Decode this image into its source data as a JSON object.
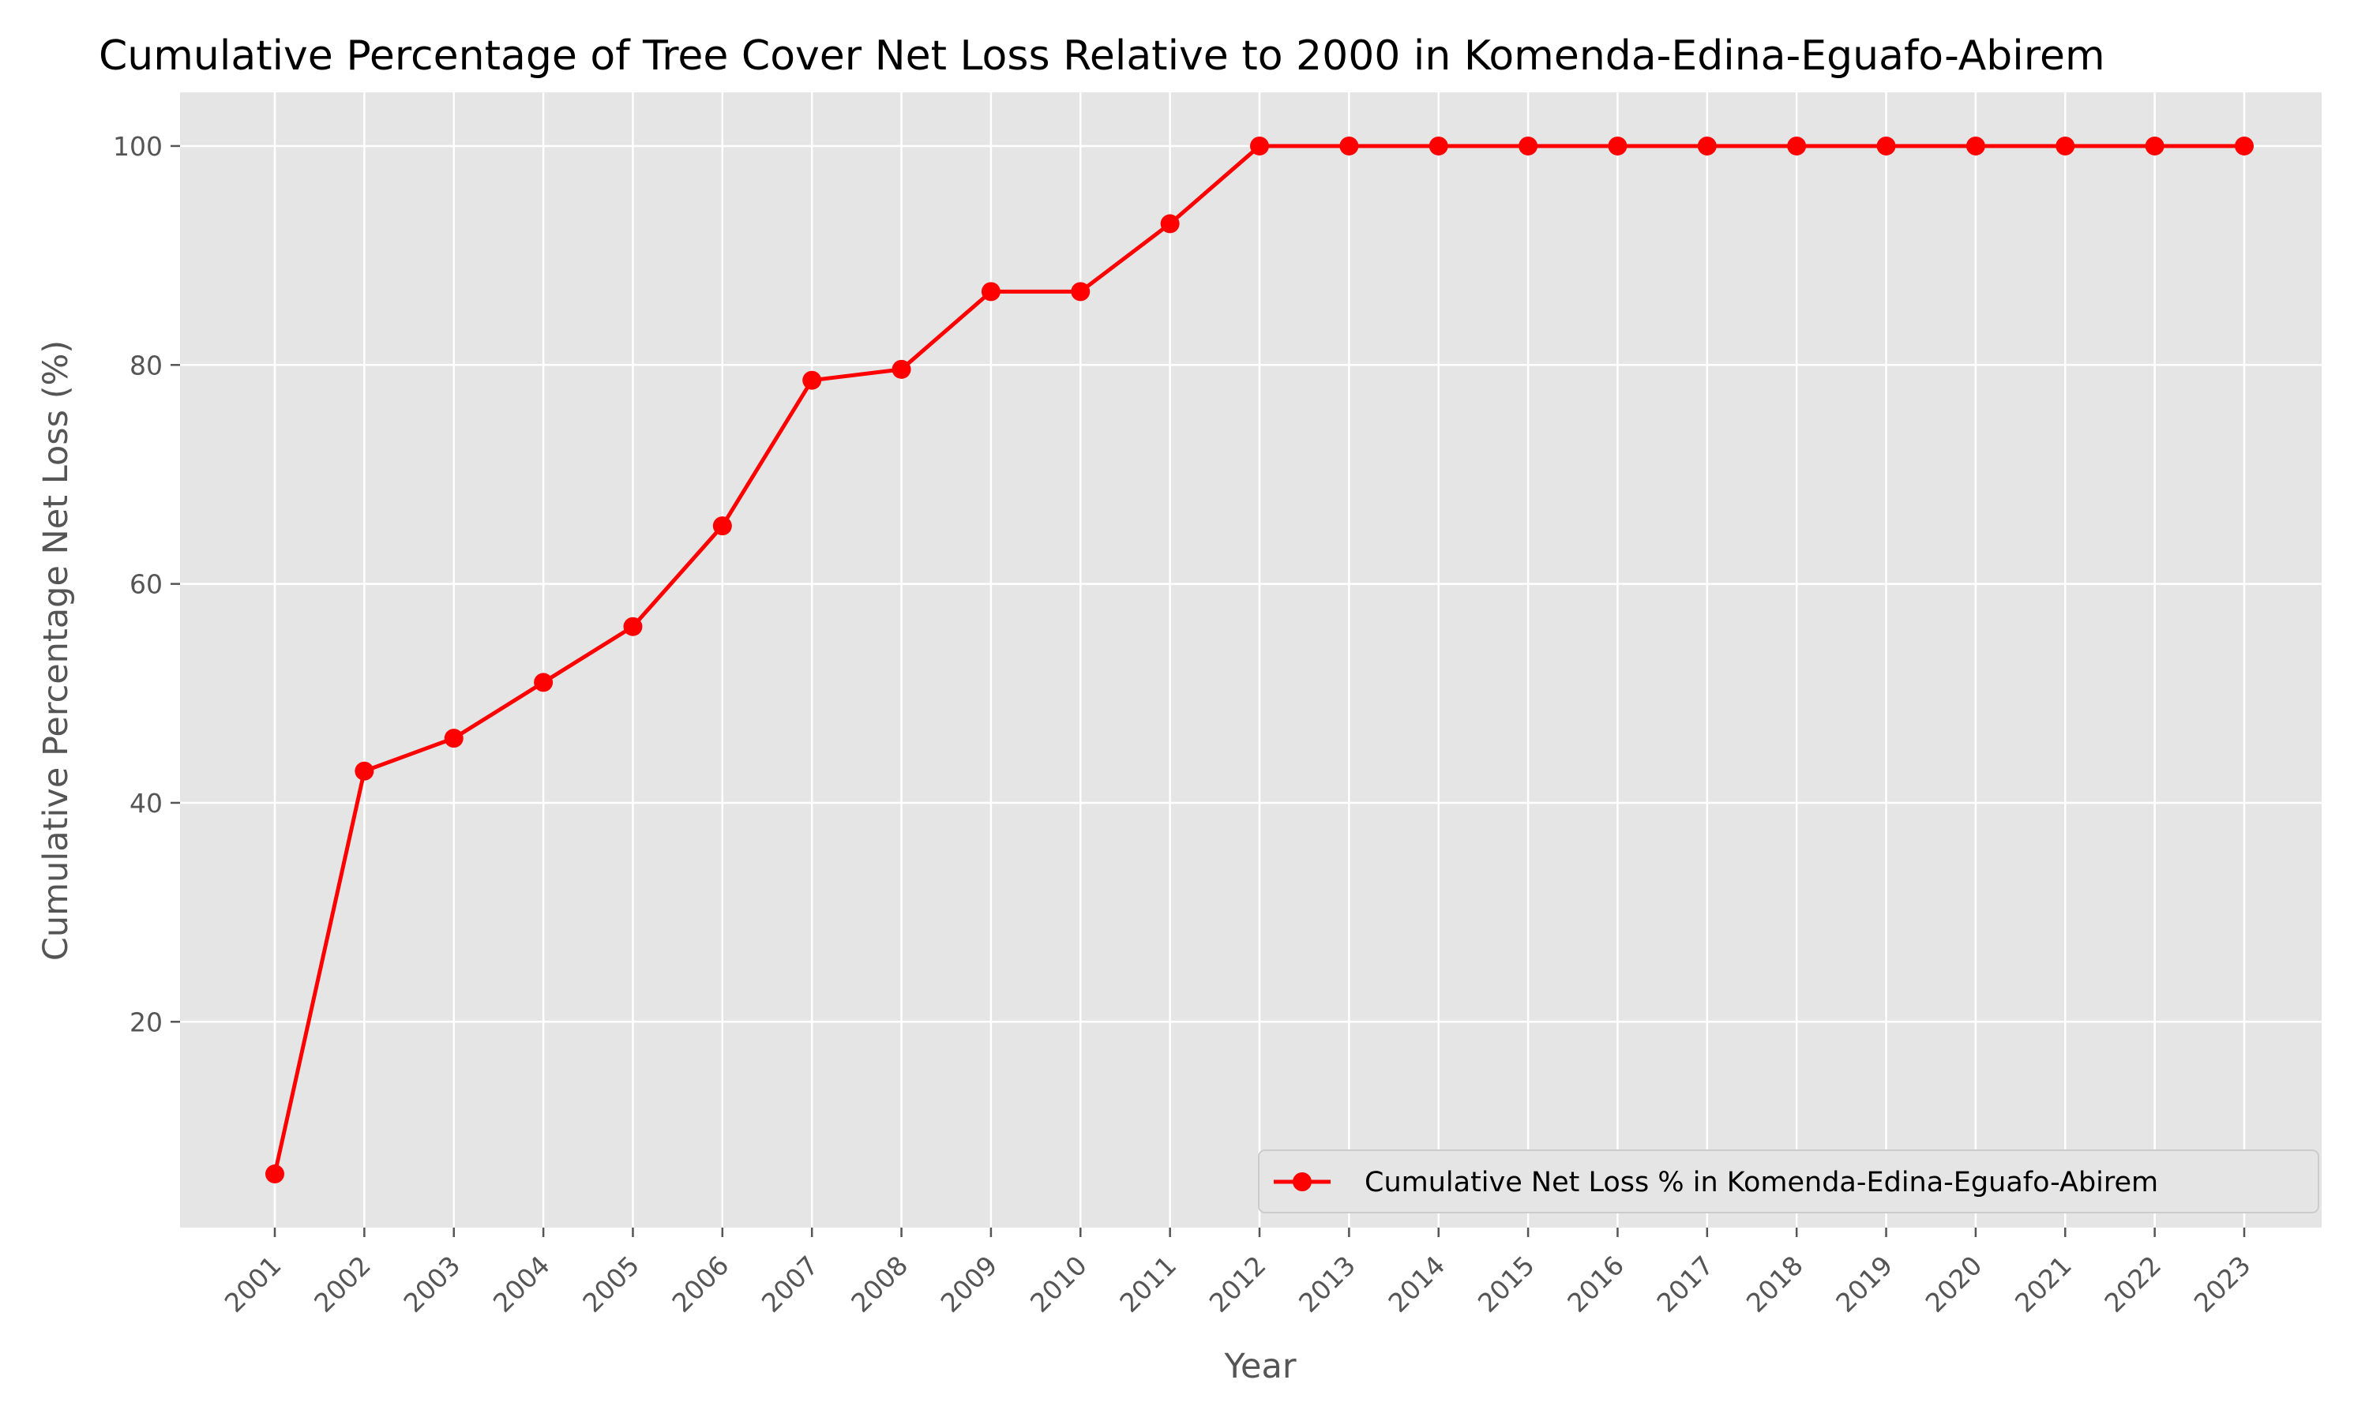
{
  "chart_data": {
    "type": "line",
    "title": "Cumulative Percentage of Tree Cover Net Loss Relative to 2000 in Komenda-Edina-Eguafo-Abirem",
    "xlabel": "Year",
    "ylabel": "Cumulative Percentage Net Loss (%)",
    "x": [
      "2001",
      "2002",
      "2003",
      "2004",
      "2005",
      "2006",
      "2007",
      "2008",
      "2009",
      "2010",
      "2011",
      "2012",
      "2013",
      "2014",
      "2015",
      "2016",
      "2017",
      "2018",
      "2019",
      "2020",
      "2021",
      "2022",
      "2023"
    ],
    "series": [
      {
        "name": "Cumulative Net Loss % in Komenda-Edina-Eguafo-Abirem",
        "color": "#ff0000",
        "marker": "circle",
        "values": [
          6.1,
          42.9,
          45.9,
          51.0,
          56.1,
          65.3,
          78.6,
          79.6,
          86.7,
          86.7,
          92.9,
          100,
          100,
          100,
          100,
          100,
          100,
          100,
          100,
          100,
          100,
          100,
          100
        ]
      }
    ],
    "ylim": [
      1.2,
      104.9
    ],
    "yticks": [
      20,
      40,
      60,
      80,
      100
    ],
    "grid": true,
    "legend_position": "lower-right",
    "background": "#e5e5e5",
    "grid_color": "#ffffff"
  }
}
